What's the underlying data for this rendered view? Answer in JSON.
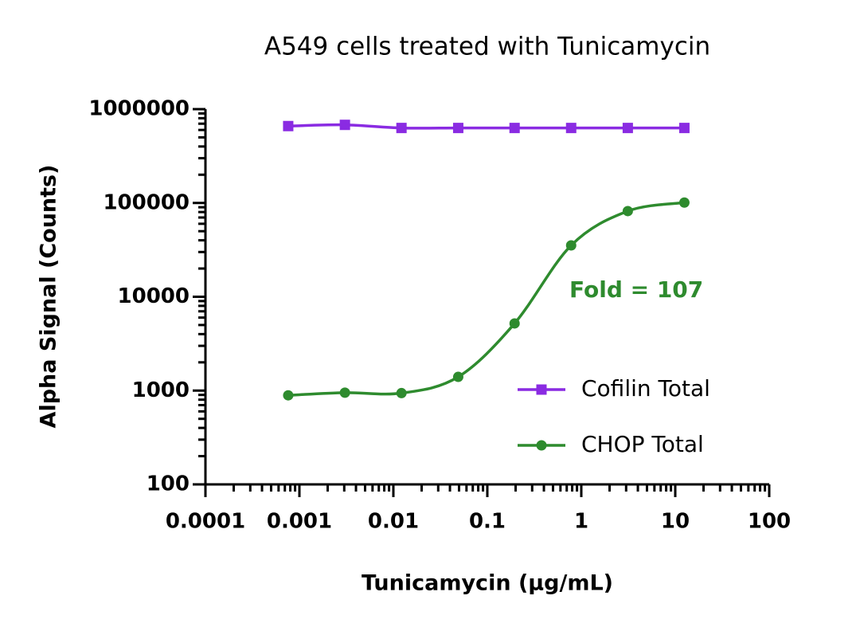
{
  "chart_data": {
    "type": "scatter",
    "title": "A549 cells treated with Tunicamycin",
    "x_label": "Tunicamycin  (µg/mL)",
    "y_label": "Alpha Signal (Counts)",
    "x_scale": "log",
    "y_scale": "log",
    "xlim": [
      0.0001,
      100
    ],
    "ylim": [
      100,
      1000000
    ],
    "xticks": [
      0.0001,
      0.001,
      0.01,
      0.1,
      1,
      10,
      100
    ],
    "yticks": [
      100,
      1000,
      10000,
      100000,
      1000000
    ],
    "legend": "lower right",
    "annotation": "Fold = 107",
    "series": [
      {
        "name": "Cofilin Total",
        "color": "#8a2be2",
        "marker": "square",
        "x": [
          0.00076,
          0.00305,
          0.0122,
          0.049,
          0.195,
          0.78,
          3.125,
          12.5
        ],
        "values": [
          660000,
          680000,
          630000,
          630000,
          630000,
          630000,
          630000,
          630000
        ]
      },
      {
        "name": "CHOP Total",
        "color": "#2e8b2e",
        "marker": "circle",
        "x": [
          0.00076,
          0.00305,
          0.0122,
          0.049,
          0.195,
          0.78,
          3.125,
          12.5
        ],
        "values": [
          890,
          950,
          940,
          1400,
          5200,
          35300,
          81900,
          101000
        ]
      }
    ]
  }
}
